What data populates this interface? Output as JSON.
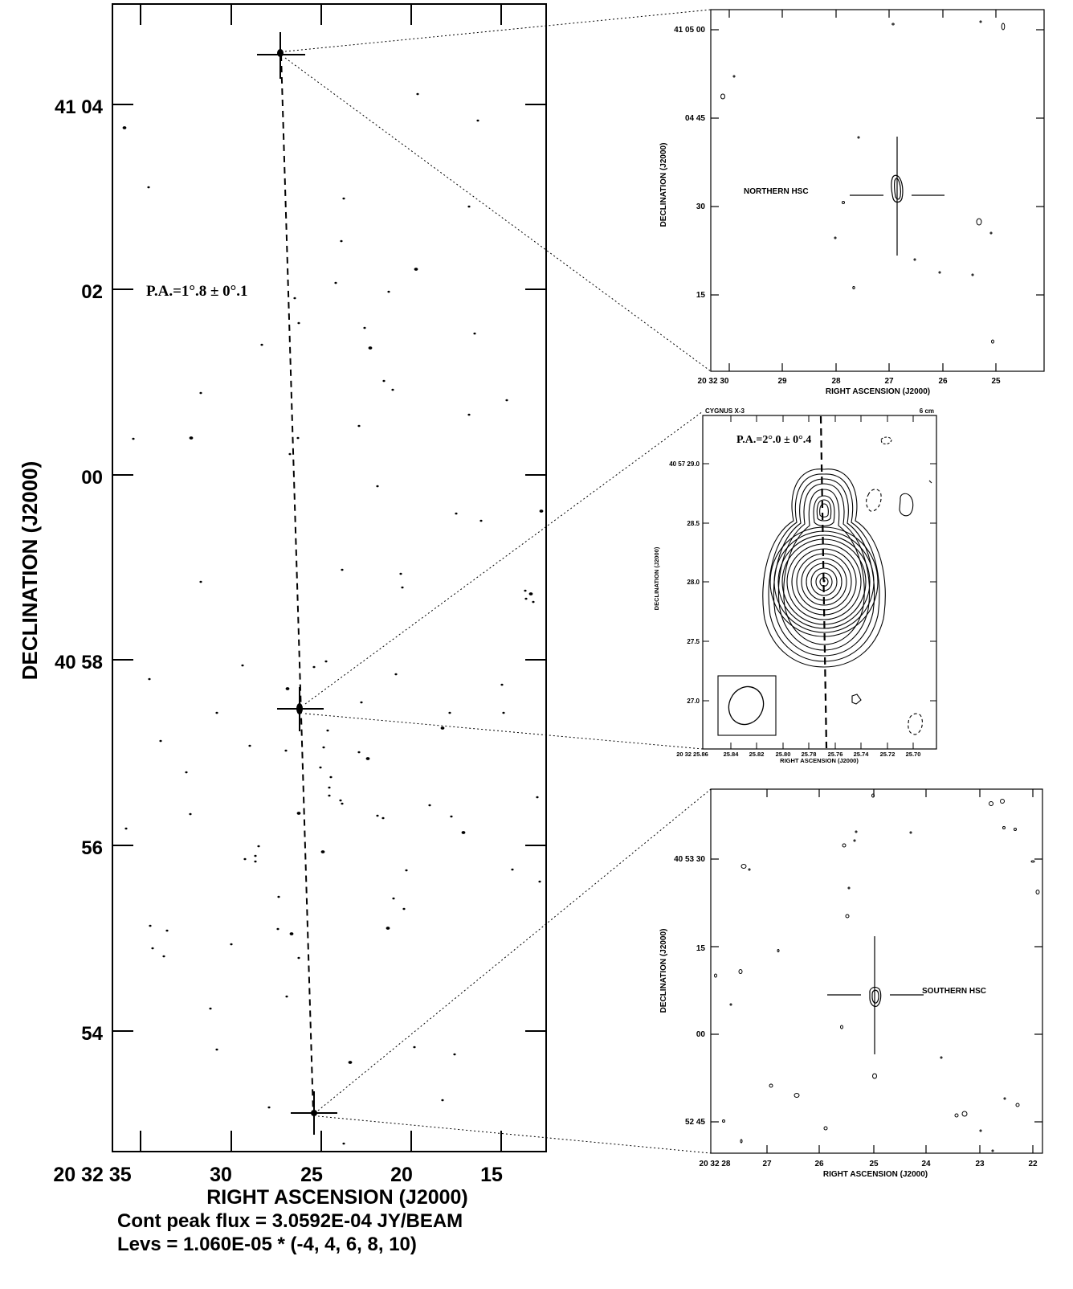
{
  "main_panel": {
    "ylabel": "DECLINATION (J2000)",
    "xlabel": "RIGHT ASCENSION (J2000)",
    "y_ticks": [
      "41 04",
      "02",
      "00",
      "40 58",
      "56",
      "54"
    ],
    "x_ticks": [
      "20 32 35",
      "30",
      "25",
      "20",
      "15"
    ],
    "pa_label": "P.A.=1°.8 ± 0°.1",
    "flux_text": "Cont peak flux =  3.0592E-04 JY/BEAM",
    "levs_text": "Levs = 1.060E-05 * (-4, 4, 6, 8, 10)"
  },
  "north_panel": {
    "ylabel": "DECLINATION (J2000)",
    "xlabel": "RIGHT ASCENSION (J2000)",
    "y_ticks": [
      "41 05 00",
      "04 45",
      "30",
      "15"
    ],
    "x_ticks": [
      "20 32 30",
      "29",
      "28",
      "27",
      "26",
      "25"
    ],
    "label": "NORTHERN HSC"
  },
  "center_panel": {
    "source": "CYGNUS X-3",
    "wavelength": "6 cm",
    "ylabel": "DECLINATION (J2000)",
    "xlabel": "RIGHT ASCENSION (J2000)",
    "y_ticks": [
      "40 57 29.0",
      "28.5",
      "28.0",
      "27.5",
      "27.0"
    ],
    "x_ticks": [
      "20 32 25.86",
      "25.84",
      "25.82",
      "25.80",
      "25.78",
      "25.76",
      "25.74",
      "25.72",
      "25.70"
    ],
    "pa_label": "P.A.=2°.0 ± 0°.4"
  },
  "south_panel": {
    "ylabel": "DECLINATION (J2000)",
    "xlabel": "RIGHT ASCENSION (J2000)",
    "y_ticks": [
      "40 53 30",
      "15",
      "00",
      "52 45"
    ],
    "x_ticks": [
      "20 32 28",
      "27",
      "26",
      "25",
      "24",
      "23",
      "22"
    ],
    "label": "SOUTHERN HSC"
  }
}
